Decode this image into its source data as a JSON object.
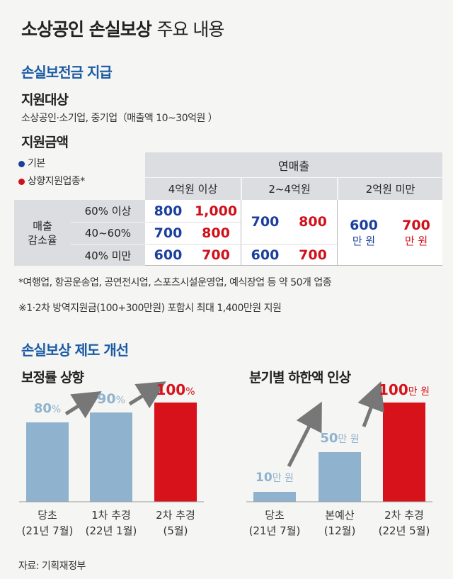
{
  "title_bold": "소상공인 손실보상",
  "title_light": "주요 내용",
  "section1": "손실보전금 지급",
  "target_heading": "지원대상",
  "target_text": "소상공인·소기업, 중기업（매출액 10~30억원 ）",
  "amount_heading": "지원금액",
  "legend": {
    "basic": "기본",
    "upgrade": "상향지원업종*"
  },
  "colors": {
    "blue": "#1b3f9c",
    "red": "#d0101a",
    "bar_blue": "#8fb3ce",
    "bar_red": "#d7121b",
    "header_gray": "#dcdde0",
    "table_bg": "#eef0f1"
  },
  "table": {
    "revenue_header": "연매출",
    "col_groups": [
      "4억원 이상",
      "2~4억원",
      "2억원 미만"
    ],
    "row_header_line1": "매출",
    "row_header_line2": "감소율",
    "rows": [
      "60% 이상",
      "40~60%",
      "40% 미만"
    ],
    "g1": [
      [
        "800",
        "1,000"
      ],
      [
        "700",
        "800"
      ],
      [
        "600",
        "700"
      ]
    ],
    "g2_top": [
      "700",
      "800"
    ],
    "g2_bottom": [
      "600",
      "700"
    ],
    "g3": {
      "basic_num": "600",
      "basic_unit": "만 원",
      "up_num": "700",
      "up_unit": "만 원"
    }
  },
  "notes": [
    "*여행업, 항공운송업, 공연전시업, 스포츠시설운영업, 예식장업 등 약 50개 업종",
    "※1·2차 방역지원금(100+300만원) 포함시 최대 1,400만원 지원"
  ],
  "section2": "손실보상 제도 개선",
  "source": "자료: 기획재정부",
  "chart_data": [
    {
      "type": "bar",
      "title": "보정률 상향",
      "categories": [
        "당초 (21년 7월)",
        "1차 추경 (22년 1월)",
        "2차 추경 (5월)"
      ],
      "cat_line1": [
        "당초",
        "1차 추경",
        "2차 추경"
      ],
      "cat_line2": [
        "(21년 7월)",
        "(22년 1월)",
        "(5월)"
      ],
      "values": [
        80,
        90,
        100
      ],
      "labels_num": [
        "80",
        "90",
        "100"
      ],
      "labels_unit": [
        "%",
        "%",
        "%"
      ],
      "unit": "%"
    },
    {
      "type": "bar",
      "title": "분기별 하한액 인상",
      "categories": [
        "당초 (21년 7월)",
        "본예산 (12월)",
        "2차 추경 (22년 5월)"
      ],
      "cat_line1": [
        "당초",
        "본예산",
        "2차 추경"
      ],
      "cat_line2": [
        "(21년 7월)",
        "(12월)",
        "(22년 5월)"
      ],
      "values": [
        10,
        50,
        100
      ],
      "labels_num": [
        "10",
        "50",
        "100"
      ],
      "labels_unit": [
        "만 원",
        "만 원",
        "만 원"
      ],
      "unit": "만 원"
    }
  ]
}
